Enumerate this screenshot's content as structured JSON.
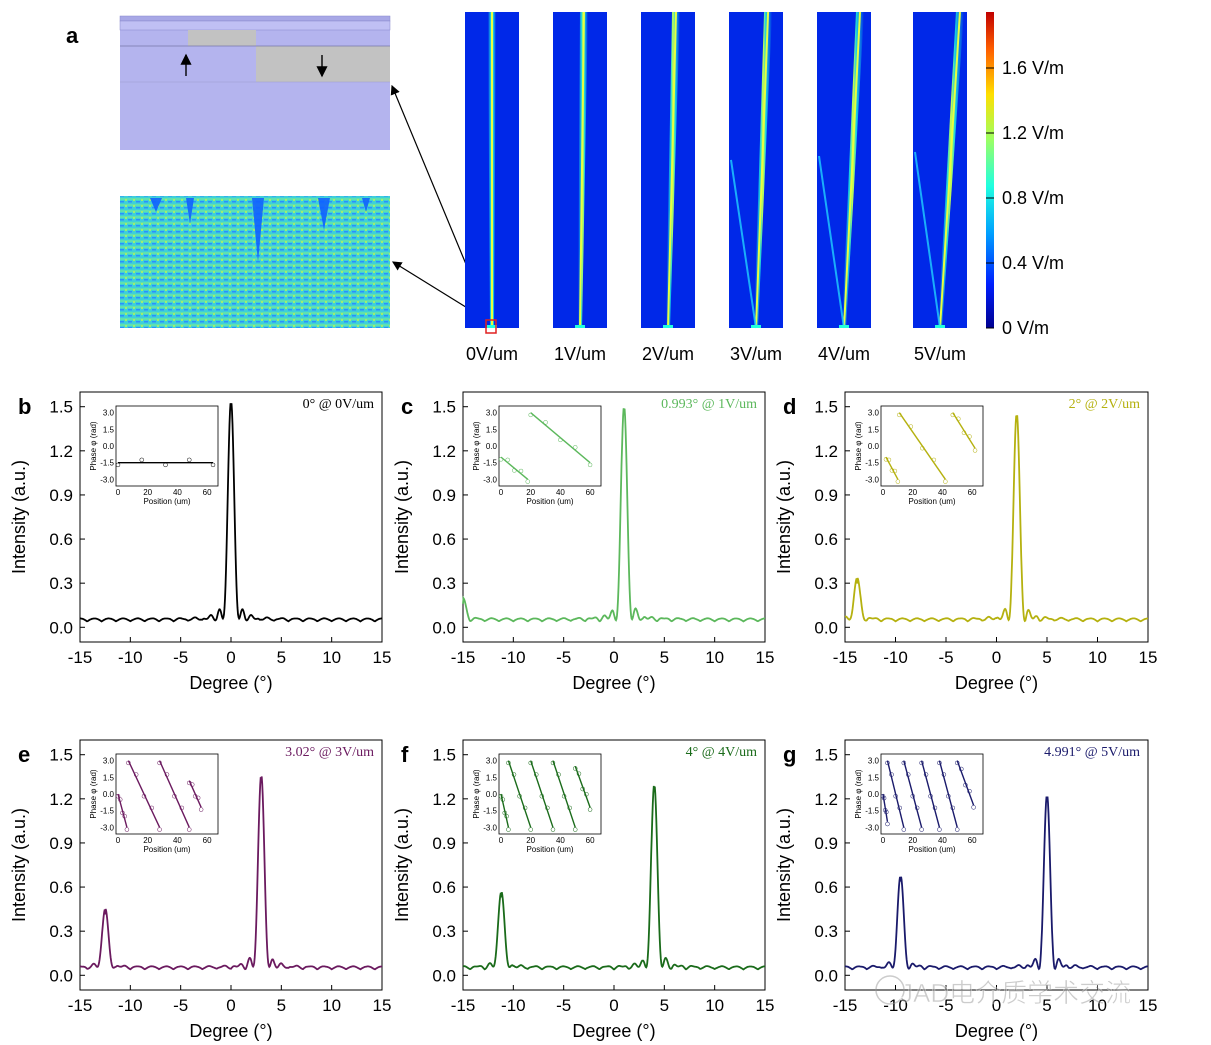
{
  "panel_a": {
    "label": "a",
    "field_labels": [
      "0V/um",
      "1V/um",
      "2V/um",
      "3V/um",
      "4V/um",
      "5V/um"
    ],
    "steer_angles_deg": [
      0,
      0.993,
      2,
      3.02,
      4,
      4.991
    ],
    "colorbar_ticks": [
      "1.6 V/m",
      "1.2 V/m",
      "0.8 V/m",
      "0.4 V/m",
      "0 V/m"
    ],
    "colormap": [
      "#00008f",
      "#0020ff",
      "#00a0ff",
      "#20ffdf",
      "#9fff60",
      "#ffdf00",
      "#ff6000",
      "#c00000"
    ]
  },
  "watermark": "JAD电介质学术交流",
  "chart_data": [
    {
      "panel": "b",
      "type": "line",
      "annotation": "0° @ 0V/um",
      "color": "#000000",
      "xlabel": "Degree (°)",
      "ylabel": "Intensity (a.u.)",
      "xlim": [
        -15,
        15
      ],
      "ylim": [
        -0.1,
        1.6
      ],
      "xticks": [
        "-15",
        "-10",
        "-5",
        "0",
        "5",
        "10",
        "15"
      ],
      "yticks": [
        "0.0",
        "0.3",
        "0.6",
        "0.9",
        "1.2",
        "1.5"
      ],
      "peaks": [
        {
          "x": 0,
          "y": 1.5
        }
      ],
      "baseline": 0.04,
      "inset": {
        "xlabel": "Position (um)",
        "ylabel": "Phase φ (rad)",
        "xticks": [
          "0",
          "20",
          "40",
          "60"
        ],
        "yticks": [
          "3.0",
          "1.5",
          "0.0",
          "-1.5",
          "-3.0"
        ],
        "segments": [
          {
            "x": [
              0,
              64
            ],
            "y": [
              -1.5,
              -1.5
            ]
          }
        ]
      }
    },
    {
      "panel": "c",
      "type": "line",
      "annotation": "0.993° @ 1V/um",
      "color": "#5cb85c",
      "xlabel": "Degree (°)",
      "ylabel": "Intensity (a.u.)",
      "xlim": [
        -15,
        15
      ],
      "ylim": [
        -0.1,
        1.6
      ],
      "xticks": [
        "-15",
        "-10",
        "-5",
        "0",
        "5",
        "10",
        "15"
      ],
      "yticks": [
        "0.0",
        "0.3",
        "0.6",
        "0.9",
        "1.2",
        "1.5"
      ],
      "peaks": [
        {
          "x": 1,
          "y": 1.45
        },
        {
          "x": -15,
          "y": 0.14
        }
      ],
      "baseline": 0.04,
      "inset": {
        "xlabel": "Position (um)",
        "ylabel": "Phase φ (rad)",
        "xticks": [
          "0",
          "20",
          "40",
          "60"
        ],
        "yticks": [
          "3.0",
          "1.5",
          "0.0",
          "-1.5",
          "-3.0"
        ],
        "segments": [
          {
            "x": [
              0,
              18
            ],
            "y": [
              -1,
              -3
            ]
          },
          {
            "x": [
              20,
              60
            ],
            "y": [
              3,
              -1.5
            ]
          }
        ]
      }
    },
    {
      "panel": "d",
      "type": "line",
      "annotation": "2° @ 2V/um",
      "color": "#b5b10f",
      "xlabel": "Degree (°)",
      "ylabel": "Intensity (a.u.)",
      "xlim": [
        -15,
        15
      ],
      "ylim": [
        -0.1,
        1.6
      ],
      "xticks": [
        "-15",
        "-10",
        "-5",
        "0",
        "5",
        "10",
        "15"
      ],
      "yticks": [
        "0.0",
        "0.3",
        "0.6",
        "0.9",
        "1.2",
        "1.5"
      ],
      "peaks": [
        {
          "x": 2,
          "y": 1.4
        },
        {
          "x": -13.8,
          "y": 0.28
        }
      ],
      "baseline": 0.04,
      "inset": {
        "xlabel": "Position (um)",
        "ylabel": "Phase φ (rad)",
        "xticks": [
          "0",
          "20",
          "40",
          "60"
        ],
        "yticks": [
          "3.0",
          "1.5",
          "0.0",
          "-1.5",
          "-3.0"
        ],
        "segments": [
          {
            "x": [
              2,
              10
            ],
            "y": [
              -1,
              -3
            ]
          },
          {
            "x": [
              11,
              42
            ],
            "y": [
              3,
              -3
            ]
          },
          {
            "x": [
              47,
              62
            ],
            "y": [
              3,
              -0.2
            ]
          }
        ]
      }
    },
    {
      "panel": "e",
      "type": "line",
      "annotation": "3.02° @ 3V/um",
      "color": "#6b1a5f",
      "xlabel": "Degree (°)",
      "ylabel": "Intensity (a.u.)",
      "xlim": [
        -15,
        15
      ],
      "ylim": [
        -0.1,
        1.6
      ],
      "xticks": [
        "-15",
        "-10",
        "-5",
        "0",
        "5",
        "10",
        "15"
      ],
      "yticks": [
        "0.0",
        "0.3",
        "0.6",
        "0.9",
        "1.2",
        "1.5"
      ],
      "peaks": [
        {
          "x": 3,
          "y": 1.32
        },
        {
          "x": -12.5,
          "y": 0.4
        }
      ],
      "baseline": 0.04,
      "inset": {
        "xlabel": "Position (um)",
        "ylabel": "Phase φ (rad)",
        "xticks": [
          "0",
          "20",
          "40",
          "60"
        ],
        "yticks": [
          "3.0",
          "1.5",
          "0.0",
          "-1.5",
          "-3.0"
        ],
        "segments": [
          {
            "x": [
              0,
              6
            ],
            "y": [
              0,
              -3
            ]
          },
          {
            "x": [
              7,
              28
            ],
            "y": [
              3,
              -3
            ]
          },
          {
            "x": [
              28,
              48
            ],
            "y": [
              3,
              -3
            ]
          },
          {
            "x": [
              48,
              56
            ],
            "y": [
              1.2,
              -1.2
            ]
          }
        ]
      }
    },
    {
      "panel": "f",
      "type": "line",
      "annotation": "4° @ 4V/um",
      "color": "#1a6b1a",
      "xlabel": "Degree (°)",
      "ylabel": "Intensity (a.u.)",
      "xlim": [
        -15,
        15
      ],
      "ylim": [
        -0.1,
        1.6
      ],
      "xticks": [
        "-15",
        "-10",
        "-5",
        "0",
        "5",
        "10",
        "15"
      ],
      "yticks": [
        "0.0",
        "0.3",
        "0.6",
        "0.9",
        "1.2",
        "1.5"
      ],
      "peaks": [
        {
          "x": 4,
          "y": 1.25
        },
        {
          "x": -11.2,
          "y": 0.52
        }
      ],
      "baseline": 0.04,
      "inset": {
        "xlabel": "Position (um)",
        "ylabel": "Phase φ (rad)",
        "xticks": [
          "0",
          "20",
          "40",
          "60"
        ],
        "yticks": [
          "3.0",
          "1.5",
          "0.0",
          "-1.5",
          "-3.0"
        ],
        "segments": [
          {
            "x": [
              0,
              5
            ],
            "y": [
              0,
              -3
            ]
          },
          {
            "x": [
              5,
              20
            ],
            "y": [
              3,
              -3
            ]
          },
          {
            "x": [
              20,
              35
            ],
            "y": [
              3,
              -3
            ]
          },
          {
            "x": [
              35,
              50
            ],
            "y": [
              3,
              -3
            ]
          },
          {
            "x": [
              50,
              60
            ],
            "y": [
              2.5,
              -1.2
            ]
          }
        ]
      }
    },
    {
      "panel": "g",
      "type": "line",
      "annotation": "4.991° @ 5V/um",
      "color": "#1a1a6b",
      "xlabel": "Degree (°)",
      "ylabel": "Intensity (a.u.)",
      "xlim": [
        -15,
        15
      ],
      "ylim": [
        -0.1,
        1.6
      ],
      "xticks": [
        "-15",
        "-10",
        "-5",
        "0",
        "5",
        "10",
        "15"
      ],
      "yticks": [
        "0.0",
        "0.3",
        "0.6",
        "0.9",
        "1.2",
        "1.5"
      ],
      "peaks": [
        {
          "x": 5,
          "y": 1.17
        },
        {
          "x": -9.5,
          "y": 0.62
        }
      ],
      "baseline": 0.04,
      "inset": {
        "xlabel": "Position (um)",
        "ylabel": "Phase φ (rad)",
        "xticks": [
          "0",
          "20",
          "40",
          "60"
        ],
        "yticks": [
          "3.0",
          "1.5",
          "0.0",
          "-1.5",
          "-3.0"
        ],
        "segments": [
          {
            "x": [
              0,
              3
            ],
            "y": [
              0,
              -2.5
            ]
          },
          {
            "x": [
              3,
              14
            ],
            "y": [
              3,
              -3
            ]
          },
          {
            "x": [
              14,
              26
            ],
            "y": [
              3,
              -3
            ]
          },
          {
            "x": [
              26,
              38
            ],
            "y": [
              3,
              -3
            ]
          },
          {
            "x": [
              38,
              50
            ],
            "y": [
              3,
              -3
            ]
          },
          {
            "x": [
              50,
              61
            ],
            "y": [
              3,
              -1
            ]
          }
        ]
      }
    }
  ]
}
